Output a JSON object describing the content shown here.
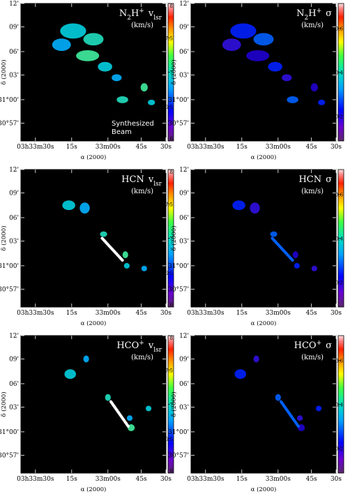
{
  "colors": {
    "panel_bg": "#000000",
    "emission_white": "#ffffff"
  },
  "ra_ticks": [
    "03h33m30s",
    "15s",
    "33m00s",
    "45s",
    "30s"
  ],
  "dec_ticks": [
    "12'",
    "09'",
    "06'",
    "03'",
    "31°00'",
    "30°57'"
  ],
  "xlabel": "α (2000)",
  "ylabel": "δ (2000)",
  "units": "(km/s)",
  "beam_label_1": "Synthesized",
  "beam_label_2": "Beam",
  "vlsr_colorbar_ticks": [
    "8",
    "7.5",
    "7",
    "6.5",
    "6"
  ],
  "sigma_colorbar_ticks": [
    "0.6",
    "0.4",
    "0.2"
  ],
  "panels": [
    {
      "id": "n2h-vlsr",
      "species": "N2H+",
      "map": "vlsr"
    },
    {
      "id": "n2h-sigma",
      "species": "N2H+",
      "map": "sigma"
    },
    {
      "id": "hcn-vlsr",
      "species": "HCN",
      "map": "vlsr"
    },
    {
      "id": "hcn-sigma",
      "species": "HCN",
      "map": "sigma"
    },
    {
      "id": "hco-vlsr",
      "species": "HCO+",
      "map": "vlsr"
    },
    {
      "id": "hco-sigma",
      "species": "HCO+",
      "map": "sigma"
    }
  ]
}
